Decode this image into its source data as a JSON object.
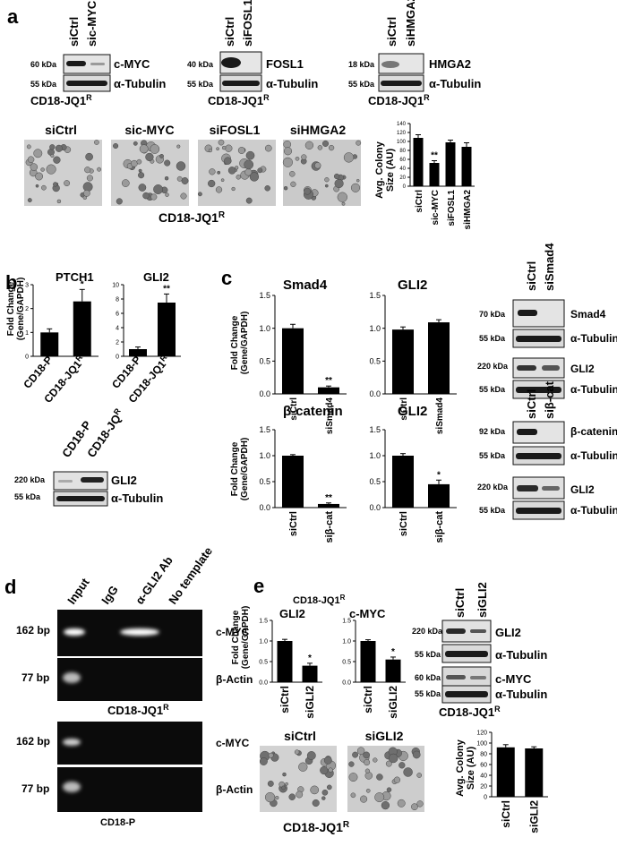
{
  "panels": {
    "a": {
      "letter": "a",
      "blots": [
        {
          "lanes": [
            "siCtrl",
            "sic-MYC"
          ],
          "rows": [
            {
              "kda": "60 kDa",
              "protein": "c-MYC"
            },
            {
              "kda": "55 kDa",
              "protein": "α-Tubulin"
            }
          ],
          "cell": "CD18-JQ1",
          "cell_sup": "R"
        },
        {
          "lanes": [
            "siCtrl",
            "siFOSL1"
          ],
          "rows": [
            {
              "kda": "40 kDa",
              "protein": "FOSL1"
            },
            {
              "kda": "55 kDa",
              "protein": "α-Tubulin"
            }
          ],
          "cell": "CD18-JQ1",
          "cell_sup": "R"
        },
        {
          "lanes": [
            "siCtrl",
            "siHMGA2"
          ],
          "rows": [
            {
              "kda": "18 kDa",
              "protein": "HMGA2"
            },
            {
              "kda": "55 kDa",
              "protein": "α-Tubulin"
            }
          ],
          "cell": "CD18-JQ1",
          "cell_sup": "R"
        }
      ],
      "images": [
        "siCtrl",
        "sic-MYC",
        "siFOSL1",
        "siHMGA2"
      ],
      "images_cell": "CD18-JQ1",
      "images_cell_sup": "R",
      "chart_ylabel_1": "Avg. Colony",
      "chart_ylabel_2": "Size (AU)",
      "chart_yticks": [
        "0",
        "20",
        "40",
        "60",
        "80",
        "100",
        "120",
        "140"
      ],
      "chart_sig": "**"
    },
    "b": {
      "letter": "b",
      "ylabel_1": "Fold Change",
      "ylabel_2": "(Gene/GAPDH)",
      "blot_lanes": [
        "CD18-P",
        "CD18-JQ"
      ],
      "blot_lane_sup": "R",
      "blot_rows": [
        {
          "kda": "220 kDa",
          "protein": "GLI2"
        },
        {
          "kda": "55 kDa",
          "protein": "α-Tubulin"
        }
      ]
    },
    "c": {
      "letter": "c",
      "ylabel_1": "Fold Change",
      "ylabel_2": "(Gene/GAPDH)",
      "blot1_lanes": [
        "siCtrl",
        "siSmad4"
      ],
      "blot1_rows": [
        {
          "kda": "70 kDa",
          "protein": "Smad4"
        },
        {
          "kda": "55 kDa",
          "protein": "α-Tubulin"
        },
        {
          "kda": "220 kDa",
          "protein": "GLI2"
        },
        {
          "kda": "55 kDa",
          "protein": "α-Tubulin"
        }
      ],
      "blot2_lanes": [
        "siCtrl",
        "siβ-cat"
      ],
      "blot2_rows": [
        {
          "kda": "92 kDa",
          "protein": "β-catenin"
        },
        {
          "kda": "55 kDa",
          "protein": "α-Tubulin"
        },
        {
          "kda": "220 kDa",
          "protein": "GLI2"
        },
        {
          "kda": "55 kDa",
          "protein": "α-Tubulin"
        }
      ]
    },
    "d": {
      "letter": "d",
      "lanes": [
        "Input",
        "IgG",
        "α-GLI2 Ab",
        "No template"
      ],
      "gel1_rows": [
        {
          "bp": "162 bp",
          "gene": "c-MYC"
        },
        {
          "bp": "77 bp",
          "gene": "β-Actin"
        }
      ],
      "gel1_cell": "CD18-JQ1",
      "gel1_cell_sup": "R",
      "gel2_rows": [
        {
          "bp": "162 bp",
          "gene": "c-MYC"
        },
        {
          "bp": "77 bp",
          "gene": "β-Actin"
        }
      ],
      "gel2_cell": "CD18-P"
    },
    "e": {
      "letter": "e",
      "header_cell": "CD18-JQ1",
      "header_cell_sup": "R",
      "ylabel_1": "Fold Change",
      "ylabel_2": "(Gene/GAPDH)",
      "blot_lanes": [
        "siCtrl",
        "siGLI2"
      ],
      "blot_rows": [
        {
          "kda": "220 kDa",
          "protein": "GLI2"
        },
        {
          "kda": "55 kDa",
          "protein": "α-Tubulin"
        },
        {
          "kda": "60 kDa",
          "protein": "c-MYC"
        },
        {
          "kda": "55 kDa",
          "protein": "α-Tubulin"
        }
      ],
      "blot_cell": "CD18-JQ1",
      "blot_cell_sup": "R",
      "images": [
        "siCtrl",
        "siGLI2"
      ],
      "images_cell": "CD18-JQ1",
      "images_cell_sup": "R",
      "col_ylabel_1": "Avg. Colony",
      "col_ylabel_2": "Size (AU)"
    }
  },
  "chart_data": [
    {
      "id": "a-colony",
      "type": "bar",
      "categories": [
        "siCtrl",
        "sic-MYC",
        "siFOSL1",
        "siHMGA2"
      ],
      "values": [
        108,
        52,
        98,
        88
      ],
      "errors": [
        7,
        5,
        5,
        9
      ],
      "ylabel": "Avg. Colony Size (AU)",
      "ylim": [
        0,
        140
      ],
      "yticks": [
        0,
        20,
        40,
        60,
        80,
        100,
        120,
        140
      ],
      "significance": [
        "",
        "**",
        "",
        ""
      ]
    },
    {
      "id": "b-ptch1",
      "type": "bar",
      "title": "PTCH1",
      "categories": [
        "CD18-P",
        "CD18-JQ1R"
      ],
      "values": [
        1.0,
        2.3
      ],
      "errors": [
        0.15,
        0.5
      ],
      "ylabel": "Fold Change (Gene/GAPDH)",
      "ylim": [
        0,
        3
      ],
      "yticks": [
        0,
        1,
        2,
        3
      ],
      "significance": [
        "",
        "*"
      ]
    },
    {
      "id": "b-gli2",
      "type": "bar",
      "title": "GLI2",
      "categories": [
        "CD18-P",
        "CD18-JQ1R"
      ],
      "values": [
        1.0,
        7.5
      ],
      "errors": [
        0.3,
        1.2
      ],
      "ylim": [
        0,
        10
      ],
      "yticks": [
        0,
        2,
        4,
        6,
        8,
        10
      ],
      "significance": [
        "",
        "**"
      ]
    },
    {
      "id": "c-smad4",
      "type": "bar",
      "title": "Smad4",
      "categories": [
        "siCtrl",
        "siSmad4"
      ],
      "values": [
        1.0,
        0.1
      ],
      "errors": [
        0.06,
        0.02
      ],
      "ylabel": "Fold Change (Gene/GAPDH)",
      "ylim": [
        0,
        1.5
      ],
      "yticks": [
        0.0,
        0.5,
        1.0,
        1.5
      ],
      "significance": [
        "",
        "**"
      ]
    },
    {
      "id": "c-gli2-smad4",
      "type": "bar",
      "title": "GLI2",
      "categories": [
        "siCtrl",
        "siSmad4"
      ],
      "values": [
        0.98,
        1.09
      ],
      "errors": [
        0.04,
        0.04
      ],
      "ylim": [
        0,
        1.5
      ],
      "yticks": [
        0.0,
        0.5,
        1.0,
        1.5
      ],
      "significance": [
        "",
        ""
      ]
    },
    {
      "id": "c-bcat",
      "type": "bar",
      "title": "β-catenin",
      "categories": [
        "siCtrl",
        "siβ-cat"
      ],
      "values": [
        1.0,
        0.07
      ],
      "errors": [
        0.02,
        0.02
      ],
      "ylabel": "Fold Change (Gene/GAPDH)",
      "ylim": [
        0,
        1.5
      ],
      "yticks": [
        0.0,
        0.5,
        1.0,
        1.5
      ],
      "significance": [
        "",
        "**"
      ]
    },
    {
      "id": "c-gli2-bcat",
      "type": "bar",
      "title": "GLI2",
      "categories": [
        "siCtrl",
        "siβ-cat"
      ],
      "values": [
        1.0,
        0.45
      ],
      "errors": [
        0.04,
        0.08
      ],
      "ylim": [
        0,
        1.5
      ],
      "yticks": [
        0.0,
        0.5,
        1.0,
        1.5
      ],
      "significance": [
        "",
        "*"
      ]
    },
    {
      "id": "e-gli2",
      "type": "bar",
      "title": "GLI2",
      "categories": [
        "siCtrl",
        "siGLI2"
      ],
      "values": [
        1.0,
        0.4
      ],
      "errors": [
        0.04,
        0.06
      ],
      "ylabel": "Fold Change (Gene/GAPDH)",
      "ylim": [
        0,
        1.5
      ],
      "yticks": [
        0.0,
        0.5,
        1.0,
        1.5
      ],
      "significance": [
        "",
        "*"
      ]
    },
    {
      "id": "e-cmyc",
      "type": "bar",
      "title": "c-MYC",
      "categories": [
        "siCtrl",
        "siGLI2"
      ],
      "values": [
        1.0,
        0.55
      ],
      "errors": [
        0.03,
        0.06
      ],
      "ylim": [
        0,
        1.5
      ],
      "yticks": [
        0.0,
        0.5,
        1.0,
        1.5
      ],
      "significance": [
        "",
        "*"
      ]
    },
    {
      "id": "e-colony",
      "type": "bar",
      "categories": [
        "siCtrl",
        "siGLI2"
      ],
      "values": [
        92,
        90
      ],
      "errors": [
        5,
        3
      ],
      "ylabel": "Avg. Colony Size (AU)",
      "ylim": [
        0,
        120
      ],
      "yticks": [
        0,
        20,
        40,
        60,
        80,
        100,
        120
      ],
      "significance": [
        "",
        ""
      ]
    }
  ]
}
